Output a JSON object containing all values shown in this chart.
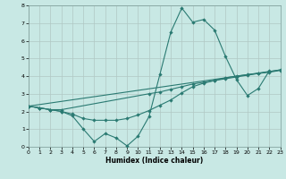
{
  "xlabel": "Humidex (Indice chaleur)",
  "xlim": [
    0,
    23
  ],
  "ylim": [
    0,
    8
  ],
  "xticks": [
    0,
    1,
    2,
    3,
    4,
    5,
    6,
    7,
    8,
    9,
    10,
    11,
    12,
    13,
    14,
    15,
    16,
    17,
    18,
    19,
    20,
    21,
    22,
    23
  ],
  "yticks": [
    0,
    1,
    2,
    3,
    4,
    5,
    6,
    7,
    8
  ],
  "bg_color": "#c8e8e4",
  "line_color": "#2a7a72",
  "grid_color": "#b0c8c4",
  "line1_x": [
    0,
    1,
    2,
    3,
    4,
    5,
    6,
    7,
    8,
    9,
    10,
    11,
    12,
    13,
    14,
    15,
    16,
    17,
    18,
    19,
    20,
    21,
    22
  ],
  "line1_y": [
    2.3,
    2.2,
    2.1,
    2.0,
    1.75,
    1.0,
    0.3,
    0.75,
    0.5,
    0.05,
    0.6,
    1.7,
    4.1,
    6.5,
    7.85,
    7.05,
    7.2,
    6.6,
    5.1,
    3.8,
    2.9,
    3.3,
    4.3
  ],
  "line2_x": [
    0,
    1,
    2,
    3,
    11,
    12,
    13,
    14,
    15,
    16,
    17,
    18,
    19,
    20,
    21,
    22,
    23
  ],
  "line2_y": [
    2.3,
    2.2,
    2.1,
    2.1,
    3.0,
    3.1,
    3.25,
    3.4,
    3.55,
    3.65,
    3.75,
    3.85,
    3.95,
    4.05,
    4.15,
    4.25,
    4.35
  ],
  "line3_x": [
    0,
    1,
    2,
    3,
    4,
    5,
    6,
    7,
    8,
    9,
    10,
    11,
    12,
    13,
    14,
    15,
    16,
    17,
    18,
    19,
    20,
    21,
    22,
    23
  ],
  "line3_y": [
    2.3,
    2.2,
    2.1,
    2.0,
    1.85,
    1.6,
    1.5,
    1.5,
    1.5,
    1.6,
    1.8,
    2.05,
    2.35,
    2.65,
    3.05,
    3.4,
    3.6,
    3.75,
    3.9,
    4.0,
    4.08,
    4.15,
    4.22,
    4.32
  ],
  "line4_x": [
    0,
    23
  ],
  "line4_y": [
    2.3,
    4.35
  ]
}
